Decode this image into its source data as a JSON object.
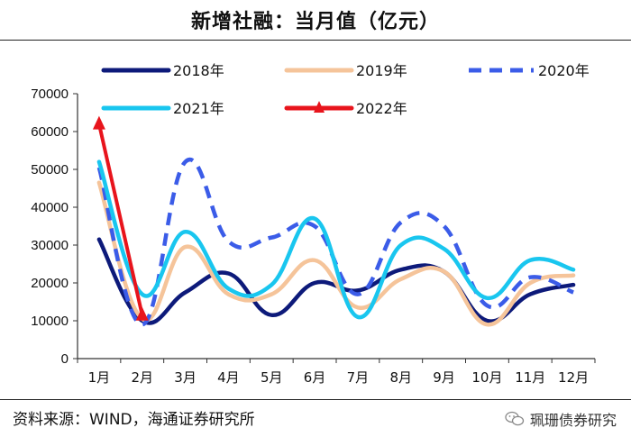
{
  "header": {
    "title": "新增社融：当月值（亿元）"
  },
  "footer": {
    "source": "资料来源：WIND，海通证券研究所",
    "watermark": "珮珊债券研究"
  },
  "chart_data": {
    "type": "line",
    "title": "新增社融：当月值（亿元）",
    "xlabel": "",
    "ylabel": "",
    "categories": [
      "1月",
      "2月",
      "3月",
      "4月",
      "5月",
      "6月",
      "7月",
      "8月",
      "9月",
      "10月",
      "11月",
      "12月"
    ],
    "ylim": [
      0,
      70000
    ],
    "yticks": [
      0,
      10000,
      20000,
      30000,
      40000,
      50000,
      60000,
      70000
    ],
    "ytick_labels": [
      "0",
      "10000",
      "20000",
      "30000",
      "40000",
      "50000",
      "60000",
      "70000"
    ],
    "legend_position": "top",
    "series": [
      {
        "name": "2018年",
        "color": "#0d1a7a",
        "style": "solid",
        "values": [
          31500,
          10000,
          17500,
          22500,
          11500,
          20000,
          18000,
          23500,
          23000,
          10000,
          17000,
          19500
        ]
      },
      {
        "name": "2019年",
        "color": "#f5c49a",
        "style": "solid",
        "values": [
          46500,
          10500,
          29500,
          17000,
          17000,
          26000,
          13500,
          21000,
          23000,
          9000,
          20000,
          22000
        ]
      },
      {
        "name": "2020年",
        "color": "#3b5ce8",
        "style": "dashed",
        "values": [
          50500,
          9000,
          52000,
          31000,
          32000,
          35000,
          17000,
          36000,
          35000,
          14000,
          21500,
          17500
        ]
      },
      {
        "name": "2021年",
        "color": "#19c6ef",
        "style": "solid",
        "values": [
          52000,
          17000,
          33500,
          18500,
          19500,
          37000,
          11000,
          30000,
          29000,
          16000,
          26000,
          23500
        ]
      },
      {
        "name": "2022年",
        "color": "#e8141c",
        "style": "solid-marker",
        "values": [
          62000,
          11500,
          null,
          null,
          null,
          null,
          null,
          null,
          null,
          null,
          null,
          null
        ]
      }
    ]
  }
}
